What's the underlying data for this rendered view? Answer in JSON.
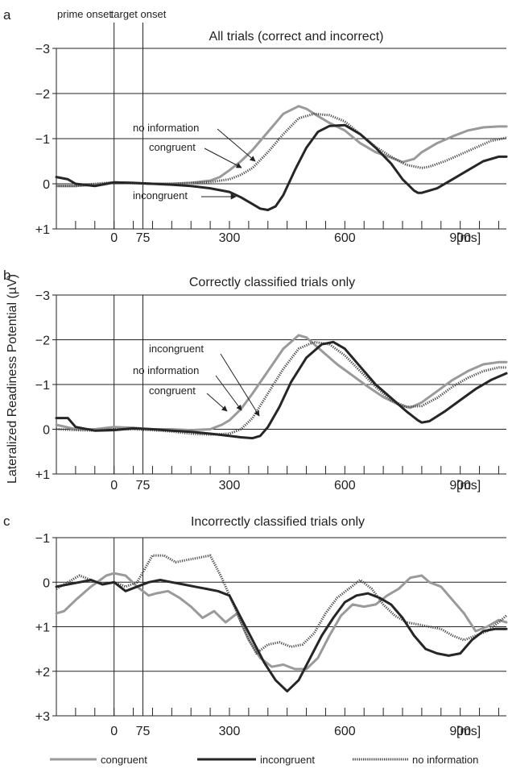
{
  "figure": {
    "y_axis_label": "Lateralized Readiness Potential (µV)",
    "x_unit": "[ms]",
    "legend": [
      {
        "label": "congruent",
        "color": "#9a9a9a",
        "style": "solid-thick"
      },
      {
        "label": "incongruent",
        "color": "#262626",
        "style": "solid-thick"
      },
      {
        "label": "no information",
        "color": "#4a4a4a",
        "style": "dotted"
      }
    ]
  },
  "colors": {
    "congruent": "#9a9a9a",
    "incongruent": "#262626",
    "no_information": "#4a4a4a"
  },
  "chart_data": [
    {
      "type": "line",
      "panel": "a",
      "title": "All trials (correct and incorrect)",
      "onset_labels": {
        "prime": "prime onset",
        "target": "target onset"
      },
      "xlim": [
        -150,
        1020
      ],
      "ylim": [
        1,
        -3
      ],
      "yticks": [
        -3,
        -2,
        -1,
        0,
        1
      ],
      "ytick_labels": [
        "−3",
        "−2",
        "−1",
        "0",
        "+1"
      ],
      "xticks": [
        0,
        75,
        300,
        600,
        900
      ],
      "xtick_labels": [
        "0",
        "75",
        "300",
        "600",
        "900"
      ],
      "grid": "horizontal",
      "vlines": [
        0,
        75
      ],
      "annotations": [
        {
          "text": "no information",
          "series": "no information"
        },
        {
          "text": "congruent",
          "series": "congruent"
        },
        {
          "text": "incongruent",
          "series": "incongruent"
        }
      ],
      "series": [
        {
          "name": "congruent",
          "x": [
            -150,
            -100,
            -50,
            0,
            50,
            100,
            150,
            200,
            250,
            275,
            300,
            330,
            360,
            400,
            440,
            480,
            500,
            530,
            560,
            600,
            640,
            680,
            720,
            750,
            780,
            800,
            840,
            880,
            920,
            960,
            1000,
            1020
          ],
          "y": [
            0.05,
            0.05,
            0.02,
            -0.03,
            -0.02,
            0.0,
            0.0,
            -0.02,
            -0.07,
            -0.15,
            -0.3,
            -0.5,
            -0.75,
            -1.15,
            -1.55,
            -1.72,
            -1.66,
            -1.5,
            -1.35,
            -1.18,
            -0.9,
            -0.7,
            -0.58,
            -0.48,
            -0.55,
            -0.7,
            -0.9,
            -1.05,
            -1.18,
            -1.25,
            -1.27,
            -1.27
          ]
        },
        {
          "name": "incongruent",
          "x": [
            -150,
            -120,
            -100,
            -50,
            0,
            50,
            100,
            150,
            200,
            250,
            300,
            330,
            360,
            380,
            400,
            420,
            440,
            470,
            500,
            530,
            560,
            600,
            640,
            680,
            720,
            750,
            780,
            790,
            800,
            840,
            880,
            920,
            960,
            1000,
            1020
          ],
          "y": [
            -0.15,
            -0.1,
            0.0,
            0.05,
            -0.03,
            -0.02,
            0.0,
            0.02,
            0.05,
            0.1,
            0.18,
            0.3,
            0.45,
            0.55,
            0.58,
            0.5,
            0.25,
            -0.3,
            -0.8,
            -1.15,
            -1.28,
            -1.3,
            -1.1,
            -0.8,
            -0.45,
            -0.1,
            0.15,
            0.2,
            0.2,
            0.1,
            -0.1,
            -0.3,
            -0.5,
            -0.6,
            -0.6
          ]
        },
        {
          "name": "no information",
          "x": [
            -150,
            -100,
            -50,
            0,
            50,
            100,
            150,
            200,
            250,
            300,
            330,
            360,
            400,
            440,
            480,
            520,
            560,
            600,
            640,
            680,
            720,
            760,
            800,
            820,
            860,
            900,
            940,
            980,
            1020
          ],
          "y": [
            0.05,
            0.05,
            0.0,
            -0.03,
            -0.01,
            0.0,
            0.0,
            -0.02,
            -0.04,
            -0.1,
            -0.2,
            -0.35,
            -0.7,
            -1.1,
            -1.45,
            -1.55,
            -1.52,
            -1.38,
            -1.1,
            -0.82,
            -0.6,
            -0.42,
            -0.35,
            -0.38,
            -0.5,
            -0.65,
            -0.8,
            -0.95,
            -1.02
          ]
        }
      ]
    },
    {
      "type": "line",
      "panel": "b",
      "title": "Correctly classified trials only",
      "xlim": [
        -150,
        1020
      ],
      "ylim": [
        1,
        -3
      ],
      "yticks": [
        -3,
        -2,
        -1,
        0,
        1
      ],
      "ytick_labels": [
        "−3",
        "−2",
        "−1",
        "0",
        "+1"
      ],
      "xticks": [
        0,
        75,
        300,
        600,
        900
      ],
      "xtick_labels": [
        "0",
        "75",
        "300",
        "600",
        "900"
      ],
      "grid": "horizontal",
      "vlines": [
        0,
        75
      ],
      "annotations": [
        {
          "text": "incongruent",
          "series": "incongruent"
        },
        {
          "text": "no information",
          "series": "no information"
        },
        {
          "text": "congruent",
          "series": "congruent"
        }
      ],
      "series": [
        {
          "name": "congruent",
          "x": [
            -150,
            -100,
            -50,
            0,
            50,
            100,
            150,
            200,
            250,
            280,
            300,
            330,
            360,
            400,
            440,
            480,
            500,
            540,
            580,
            620,
            660,
            700,
            740,
            770,
            800,
            840,
            880,
            920,
            960,
            1000,
            1020
          ],
          "y": [
            -0.1,
            0.0,
            0.0,
            -0.05,
            -0.03,
            0.0,
            0.0,
            0.02,
            0.0,
            -0.1,
            -0.2,
            -0.45,
            -0.8,
            -1.3,
            -1.8,
            -2.1,
            -2.05,
            -1.75,
            -1.45,
            -1.2,
            -0.95,
            -0.72,
            -0.55,
            -0.48,
            -0.6,
            -0.85,
            -1.1,
            -1.3,
            -1.45,
            -1.5,
            -1.5
          ]
        },
        {
          "name": "incongruent",
          "x": [
            -150,
            -120,
            -100,
            -50,
            0,
            50,
            100,
            150,
            200,
            250,
            300,
            330,
            360,
            380,
            400,
            430,
            460,
            500,
            540,
            570,
            600,
            640,
            680,
            720,
            760,
            790,
            800,
            820,
            860,
            900,
            940,
            980,
            1020
          ],
          "y": [
            -0.25,
            -0.25,
            -0.05,
            0.03,
            0.02,
            -0.02,
            0.0,
            0.03,
            0.06,
            0.1,
            0.15,
            0.18,
            0.2,
            0.15,
            -0.05,
            -0.5,
            -1.05,
            -1.6,
            -1.9,
            -1.95,
            -1.8,
            -1.4,
            -1.0,
            -0.7,
            -0.4,
            -0.2,
            -0.15,
            -0.18,
            -0.4,
            -0.65,
            -0.9,
            -1.1,
            -1.25
          ]
        },
        {
          "name": "no information",
          "x": [
            -150,
            -100,
            -50,
            0,
            50,
            100,
            150,
            200,
            250,
            300,
            330,
            360,
            400,
            440,
            480,
            520,
            560,
            600,
            640,
            680,
            720,
            760,
            800,
            840,
            880,
            920,
            960,
            1000,
            1020
          ],
          "y": [
            0.0,
            0.02,
            0.03,
            0.0,
            0.0,
            0.02,
            0.05,
            0.1,
            0.12,
            0.1,
            0.0,
            -0.25,
            -0.8,
            -1.35,
            -1.8,
            -1.95,
            -1.9,
            -1.65,
            -1.3,
            -0.95,
            -0.65,
            -0.5,
            -0.52,
            -0.7,
            -0.95,
            -1.15,
            -1.3,
            -1.38,
            -1.38
          ]
        }
      ]
    },
    {
      "type": "line",
      "panel": "c",
      "title": "Incorrectly classified trials only",
      "xlim": [
        -150,
        1020
      ],
      "ylim": [
        3,
        -1
      ],
      "yticks": [
        -1,
        0,
        1,
        2,
        3
      ],
      "ytick_labels": [
        "−1",
        "0",
        "+1",
        "+2",
        "+3"
      ],
      "xticks": [
        0,
        75,
        300,
        600,
        900
      ],
      "xtick_labels": [
        "0",
        "75",
        "300",
        "600",
        "900"
      ],
      "grid": "horizontal",
      "vlines": [
        0,
        75
      ],
      "series": [
        {
          "name": "congruent",
          "x": [
            -150,
            -130,
            -100,
            -60,
            -20,
            0,
            30,
            60,
            90,
            110,
            140,
            170,
            200,
            230,
            260,
            290,
            320,
            350,
            380,
            410,
            440,
            470,
            500,
            530,
            560,
            590,
            620,
            650,
            680,
            710,
            740,
            770,
            800,
            820,
            850,
            880,
            910,
            940,
            970,
            1000,
            1020
          ],
          "y": [
            0.7,
            0.65,
            0.4,
            0.1,
            -0.15,
            -0.2,
            -0.15,
            0.1,
            0.3,
            0.25,
            0.2,
            0.35,
            0.55,
            0.8,
            0.65,
            0.9,
            0.7,
            1.3,
            1.7,
            1.9,
            1.85,
            1.95,
            1.95,
            1.7,
            1.2,
            0.75,
            0.5,
            0.55,
            0.5,
            0.3,
            0.15,
            -0.1,
            -0.15,
            0.0,
            0.1,
            0.4,
            0.7,
            1.1,
            1.0,
            0.85,
            0.9
          ]
        },
        {
          "name": "incongruent",
          "x": [
            -150,
            -120,
            -90,
            -60,
            -30,
            0,
            30,
            60,
            90,
            120,
            150,
            180,
            210,
            240,
            270,
            300,
            330,
            360,
            390,
            420,
            450,
            480,
            510,
            540,
            570,
            600,
            630,
            660,
            690,
            720,
            750,
            780,
            810,
            840,
            870,
            900,
            930,
            960,
            990,
            1020
          ],
          "y": [
            0.1,
            0.05,
            0.0,
            -0.05,
            0.05,
            0.0,
            0.2,
            0.1,
            0.0,
            -0.05,
            0.0,
            0.05,
            0.1,
            0.15,
            0.2,
            0.3,
            0.8,
            1.3,
            1.8,
            2.2,
            2.45,
            2.2,
            1.7,
            1.2,
            0.8,
            0.45,
            0.3,
            0.25,
            0.35,
            0.5,
            0.8,
            1.2,
            1.5,
            1.6,
            1.65,
            1.6,
            1.3,
            1.1,
            1.05,
            1.05
          ]
        },
        {
          "name": "no information",
          "x": [
            -150,
            -120,
            -90,
            -60,
            -30,
            0,
            30,
            60,
            80,
            100,
            130,
            160,
            190,
            220,
            250,
            280,
            310,
            340,
            370,
            400,
            430,
            460,
            490,
            520,
            550,
            580,
            610,
            640,
            670,
            700,
            730,
            760,
            790,
            820,
            850,
            880,
            910,
            940,
            970,
            1000,
            1020
          ],
          "y": [
            0.15,
            0.0,
            -0.15,
            -0.05,
            0.05,
            0.0,
            0.1,
            0.0,
            -0.3,
            -0.6,
            -0.6,
            -0.45,
            -0.5,
            -0.55,
            -0.6,
            -0.1,
            0.5,
            1.1,
            1.6,
            1.4,
            1.35,
            1.45,
            1.4,
            1.15,
            0.7,
            0.35,
            0.15,
            -0.05,
            0.15,
            0.5,
            0.75,
            0.9,
            0.95,
            1.0,
            1.05,
            1.2,
            1.3,
            1.2,
            1.1,
            0.9,
            0.75
          ]
        }
      ]
    }
  ]
}
